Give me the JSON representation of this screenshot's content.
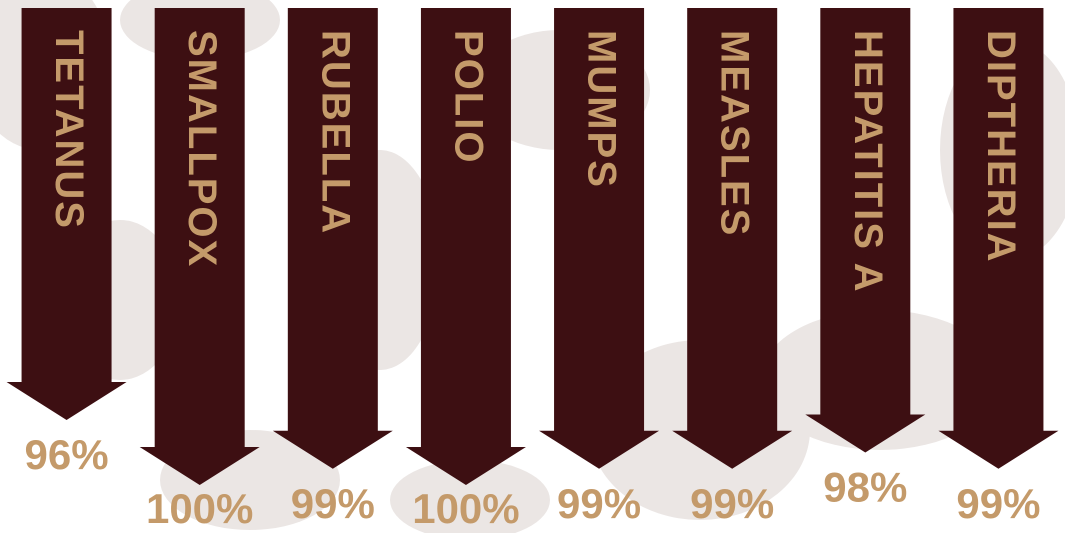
{
  "chart_data": {
    "type": "arrow",
    "categories": [
      "TETANUS",
      "SMALLPOX",
      "RUBELLA",
      "POLIO",
      "MUMPS",
      "MEASLES",
      "HEPATITIS A",
      "DIPTHERIA"
    ],
    "values": [
      96,
      100,
      99,
      100,
      99,
      99,
      98,
      99
    ],
    "value_labels": [
      "96%",
      "100%",
      "99%",
      "100%",
      "99%",
      "99%",
      "98%",
      "99%"
    ],
    "color": "#3d0f12",
    "label_color": "#c49a6a"
  }
}
